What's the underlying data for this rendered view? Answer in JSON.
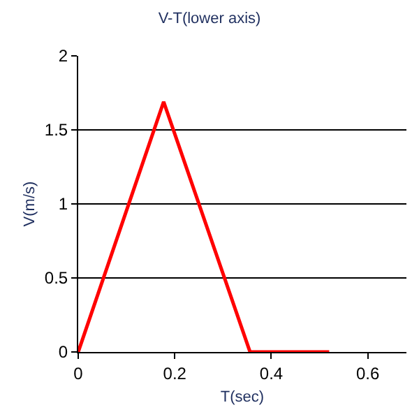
{
  "chart_data": {
    "type": "line",
    "title": "V-T(lower axis)",
    "xlabel": "T(sec)",
    "ylabel": "V(m/s)",
    "x": [
      0,
      0.177,
      0.356,
      0.52
    ],
    "series": [
      {
        "color": "#ff0000",
        "values": [
          0,
          1.69,
          0,
          0
        ]
      }
    ],
    "xlim": [
      0,
      0.68
    ],
    "xticks": [
      0,
      0.2,
      0.4,
      0.6
    ],
    "ylim": [
      0,
      2
    ],
    "yticks": [
      0,
      0.5,
      1,
      1.5,
      2
    ],
    "grid": "y",
    "legend": false,
    "marker": "none",
    "line_style": "solid"
  }
}
